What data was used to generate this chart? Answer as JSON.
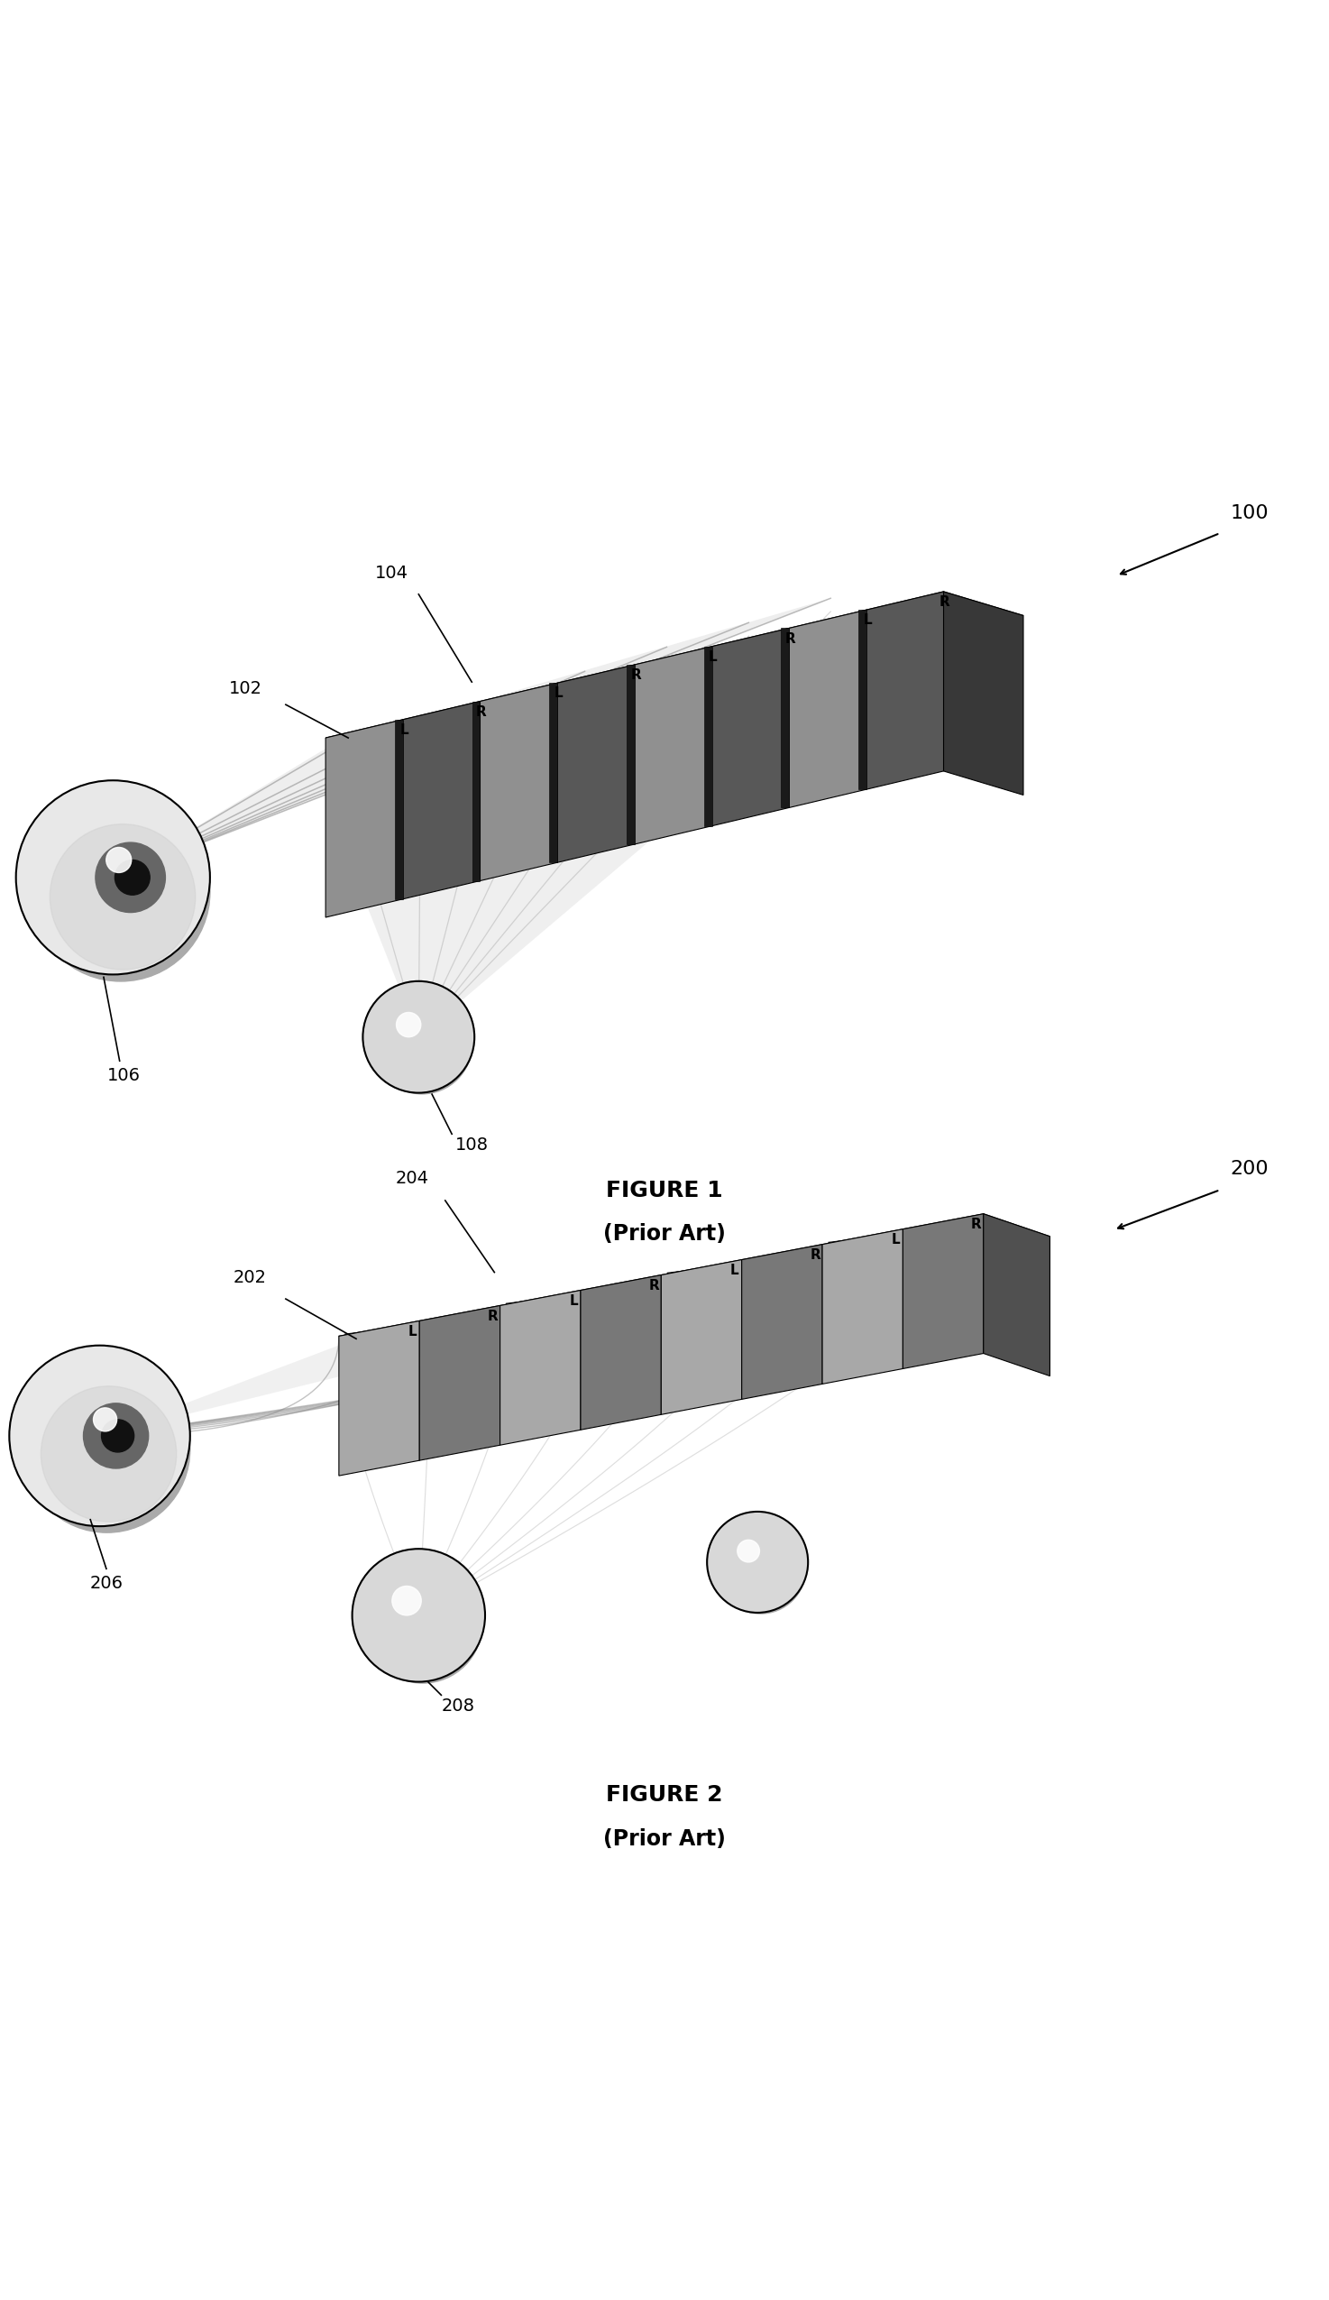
{
  "fig1": {
    "label": "100",
    "caption": "FIGURE 1",
    "subcaption": "(Prior Art)"
  },
  "fig2": {
    "label": "200",
    "caption": "FIGURE 2",
    "subcaption": "(Prior Art)"
  },
  "background_color": "#ffffff",
  "text_color": "#000000"
}
